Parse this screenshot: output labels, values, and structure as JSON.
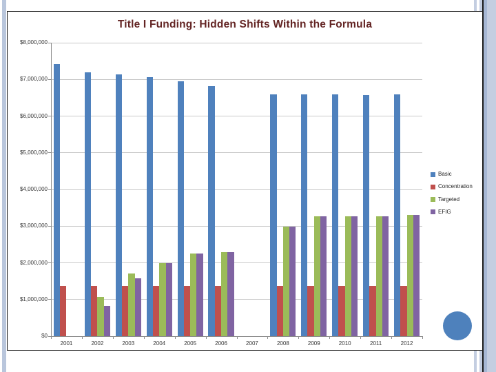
{
  "chart_data": {
    "type": "bar",
    "title": "Title I Funding: Hidden Shifts Within the Formula",
    "title_color": "#632423",
    "categories": [
      "2001",
      "2002",
      "2003",
      "2004",
      "2005",
      "2006",
      "2007",
      "2008",
      "2009",
      "2010",
      "2011",
      "2012"
    ],
    "series": [
      {
        "name": "Basic",
        "color": "#4F81BD",
        "values": [
          7420000,
          7190000,
          7140000,
          7070000,
          6940000,
          6820000,
          0,
          6590000,
          6590000,
          6590000,
          6580000,
          6590000
        ]
      },
      {
        "name": "Concentration",
        "color": "#C0504D",
        "values": [
          1370000,
          1370000,
          1370000,
          1370000,
          1370000,
          1370000,
          0,
          1370000,
          1370000,
          1370000,
          1370000,
          1370000
        ]
      },
      {
        "name": "Targeted",
        "color": "#9BBB59",
        "values": [
          0,
          1070000,
          1700000,
          1990000,
          2250000,
          2290000,
          0,
          2980000,
          3270000,
          3270000,
          3270000,
          3310000
        ]
      },
      {
        "name": "EFIG",
        "color": "#8064A2",
        "values": [
          0,
          830000,
          1580000,
          1990000,
          2250000,
          2290000,
          0,
          2980000,
          3270000,
          3270000,
          3270000,
          3310000
        ]
      }
    ],
    "xlabel": "",
    "ylabel": "",
    "ylim": [
      0,
      8000000
    ],
    "y_tick_labels": [
      "$0",
      "$1,000,000",
      "$2,000,000",
      "$3,000,000",
      "$4,000,000",
      "$5,000,000",
      "$6,000,000",
      "$7,000,000",
      "$8,000,000"
    ],
    "grid": true,
    "legend_position": "right",
    "legend_entries": [
      "Basic",
      "Concentration",
      "Targeted",
      "EFIG"
    ]
  },
  "colors": {
    "gridline": "#c8c8c8",
    "axis": "#8c8c8c",
    "axis_text": "#333333",
    "stripe_light": "#c4cee1",
    "stripe_dark": "#a6b7d4"
  }
}
